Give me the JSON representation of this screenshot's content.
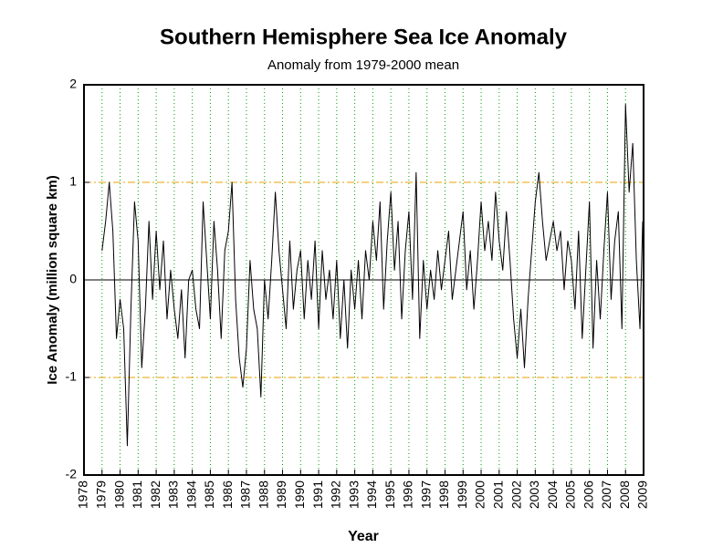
{
  "chart_data": {
    "type": "line",
    "title": "Southern Hemisphere Sea Ice Anomaly",
    "subtitle": "Anomaly from 1979-2000 mean",
    "x_label": "Year",
    "y_label": "Ice Anomaly (million square km)",
    "xlim": [
      1978,
      2009
    ],
    "xticks": [
      1978,
      1979,
      1980,
      1981,
      1982,
      1983,
      1984,
      1985,
      1986,
      1987,
      1988,
      1989,
      1990,
      1991,
      1992,
      1993,
      1994,
      1995,
      1996,
      1997,
      1998,
      1999,
      2000,
      2001,
      2002,
      2003,
      2004,
      2005,
      2006,
      2007,
      2008,
      2009
    ],
    "ylim": [
      -2,
      2
    ],
    "yticks": [
      -2,
      -1,
      0,
      1,
      2
    ],
    "grid": true,
    "x_grid_color": "#00a000",
    "y_grid_color": "#e8a000",
    "series": [
      {
        "color": "#000000",
        "x": [
          1979,
          1979.2,
          1979.4,
          1979.6,
          1979.8,
          1980,
          1980.2,
          1980.4,
          1980.6,
          1980.8,
          1981,
          1981.2,
          1981.4,
          1981.6,
          1981.8,
          1982,
          1982.2,
          1982.4,
          1982.6,
          1982.8,
          1983,
          1983.2,
          1983.4,
          1983.6,
          1983.8,
          1984,
          1984.2,
          1984.4,
          1984.6,
          1984.8,
          1985,
          1985.2,
          1985.4,
          1985.6,
          1985.8,
          1986,
          1986.2,
          1986.4,
          1986.6,
          1986.8,
          1987,
          1987.2,
          1987.4,
          1987.6,
          1987.8,
          1988,
          1988.2,
          1988.4,
          1988.6,
          1988.8,
          1989,
          1989.2,
          1989.4,
          1989.6,
          1989.8,
          1990,
          1990.2,
          1990.4,
          1990.6,
          1990.8,
          1991,
          1991.2,
          1991.4,
          1991.6,
          1991.8,
          1992,
          1992.2,
          1992.4,
          1992.6,
          1992.8,
          1993,
          1993.2,
          1993.4,
          1993.6,
          1993.8,
          1994,
          1994.2,
          1994.4,
          1994.6,
          1994.8,
          1995,
          1995.2,
          1995.4,
          1995.6,
          1995.8,
          1996,
          1996.2,
          1996.4,
          1996.6,
          1996.8,
          1997,
          1997.2,
          1997.4,
          1997.6,
          1997.8,
          1998,
          1998.2,
          1998.4,
          1998.6,
          1998.8,
          1999,
          1999.2,
          1999.4,
          1999.6,
          1999.8,
          2000,
          2000.2,
          2000.4,
          2000.6,
          2000.8,
          2001,
          2001.2,
          2001.4,
          2001.6,
          2001.8,
          2002,
          2002.2,
          2002.4,
          2002.6,
          2002.8,
          2003,
          2003.2,
          2003.4,
          2003.6,
          2003.8,
          2004,
          2004.2,
          2004.4,
          2004.6,
          2004.8,
          2005,
          2005.2,
          2005.4,
          2005.6,
          2005.8,
          2006,
          2006.2,
          2006.4,
          2006.6,
          2006.8,
          2007,
          2007.2,
          2007.4,
          2007.6,
          2007.8,
          2008,
          2008.2,
          2008.4,
          2008.6,
          2008.8,
          2008.95
        ],
        "values": [
          0.3,
          0.6,
          1.0,
          0.5,
          -0.6,
          -0.2,
          -0.5,
          -1.7,
          -0.3,
          0.8,
          0.4,
          -0.9,
          -0.3,
          0.6,
          -0.2,
          0.5,
          -0.1,
          0.4,
          -0.4,
          0.1,
          -0.3,
          -0.6,
          -0.1,
          -0.8,
          0.0,
          0.1,
          -0.3,
          -0.5,
          0.8,
          0.2,
          -0.4,
          0.6,
          0.1,
          -0.6,
          0.3,
          0.5,
          1.0,
          -0.2,
          -0.8,
          -1.1,
          -0.7,
          0.2,
          -0.3,
          -0.5,
          -1.2,
          0.0,
          -0.4,
          0.2,
          0.9,
          0.3,
          -0.1,
          -0.5,
          0.4,
          -0.3,
          0.1,
          0.3,
          -0.4,
          0.2,
          -0.2,
          0.4,
          -0.5,
          0.3,
          -0.2,
          0.1,
          -0.4,
          0.2,
          -0.6,
          0.0,
          -0.7,
          0.1,
          -0.3,
          0.2,
          -0.4,
          0.3,
          0.0,
          0.6,
          0.2,
          0.8,
          -0.3,
          0.4,
          0.9,
          0.1,
          0.6,
          -0.4,
          0.3,
          0.7,
          -0.2,
          1.1,
          -0.6,
          0.2,
          -0.3,
          0.1,
          -0.2,
          0.3,
          -0.1,
          0.2,
          0.5,
          -0.2,
          0.1,
          0.4,
          0.7,
          -0.1,
          0.3,
          -0.3,
          0.2,
          0.8,
          0.3,
          0.6,
          0.2,
          0.9,
          0.4,
          0.1,
          0.7,
          0.2,
          -0.4,
          -0.8,
          -0.3,
          -0.9,
          -0.2,
          0.3,
          0.8,
          1.1,
          0.6,
          0.2,
          0.4,
          0.6,
          0.3,
          0.5,
          -0.1,
          0.4,
          0.2,
          -0.3,
          0.5,
          -0.6,
          0.1,
          0.8,
          -0.7,
          0.2,
          -0.4,
          0.3,
          0.9,
          -0.2,
          0.4,
          0.7,
          -0.5,
          1.8,
          0.9,
          1.4,
          0.2,
          -0.5,
          0.6
        ]
      }
    ]
  }
}
